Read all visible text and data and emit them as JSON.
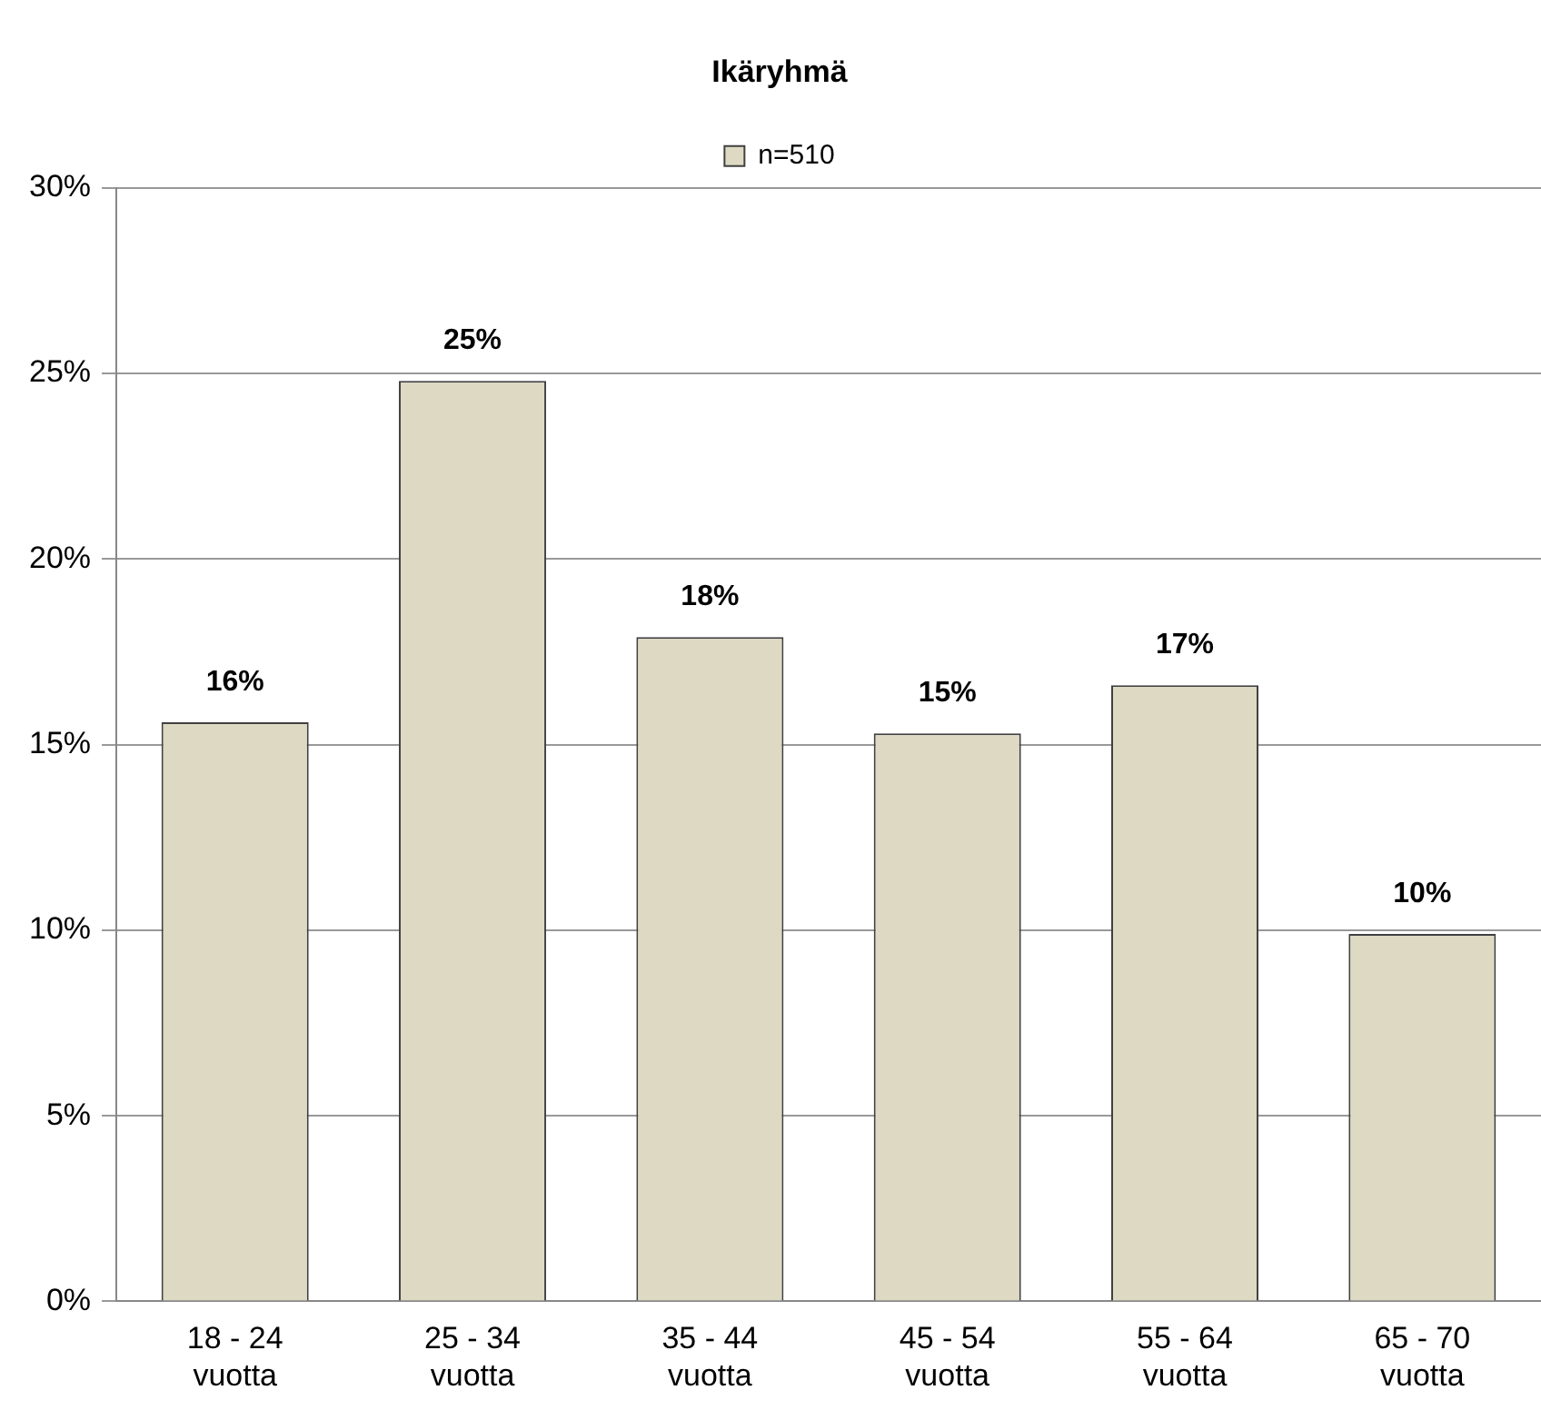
{
  "chart_data": {
    "type": "bar",
    "title": "Ikäryhmä",
    "categories": [
      "18 - 24 vuotta",
      "25 - 34 vuotta",
      "35 - 44 vuotta",
      "45 - 54 vuotta",
      "55 - 64 vuotta",
      "65 - 70 vuotta"
    ],
    "series": [
      {
        "name": "n=510",
        "color": "#ddd9c3",
        "values": [
          15.6,
          24.8,
          17.9,
          15.3,
          16.6,
          9.9
        ],
        "value_labels": [
          "16%",
          "25%",
          "18%",
          "15%",
          "17%",
          "10%"
        ]
      }
    ],
    "ylim": [
      0,
      30
    ],
    "yticks": [
      {
        "value": 0,
        "label": "0%"
      },
      {
        "value": 5,
        "label": "5%"
      },
      {
        "value": 10,
        "label": "10%"
      },
      {
        "value": 15,
        "label": "15%"
      },
      {
        "value": 20,
        "label": "20%"
      },
      {
        "value": 25,
        "label": "25%"
      },
      {
        "value": 30,
        "label": "30%"
      }
    ],
    "grid": "y",
    "legend": "top"
  }
}
